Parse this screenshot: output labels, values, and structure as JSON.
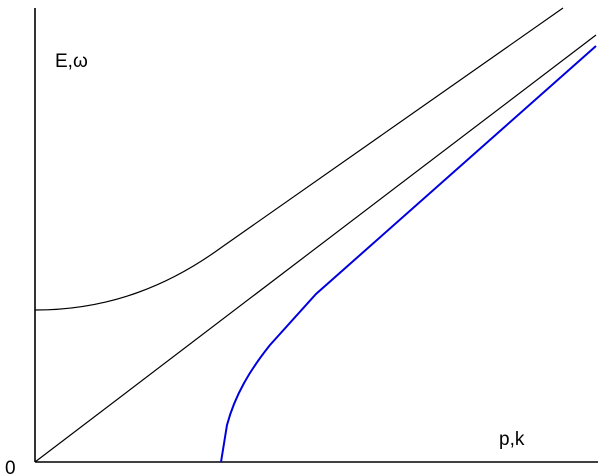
{
  "diagram": {
    "y_axis_label": "E,ω",
    "x_axis_label": "p,k",
    "origin_label": "0",
    "colors": {
      "axes": "#000000",
      "upper_curve": "#000000",
      "diagonal_line": "#000000",
      "blue_curve": "#0000dd"
    },
    "curves": [
      {
        "name": "upper-curve",
        "color": "#000000"
      },
      {
        "name": "diagonal-line",
        "color": "#000000"
      },
      {
        "name": "blue-curve",
        "color": "#0000dd"
      }
    ]
  }
}
